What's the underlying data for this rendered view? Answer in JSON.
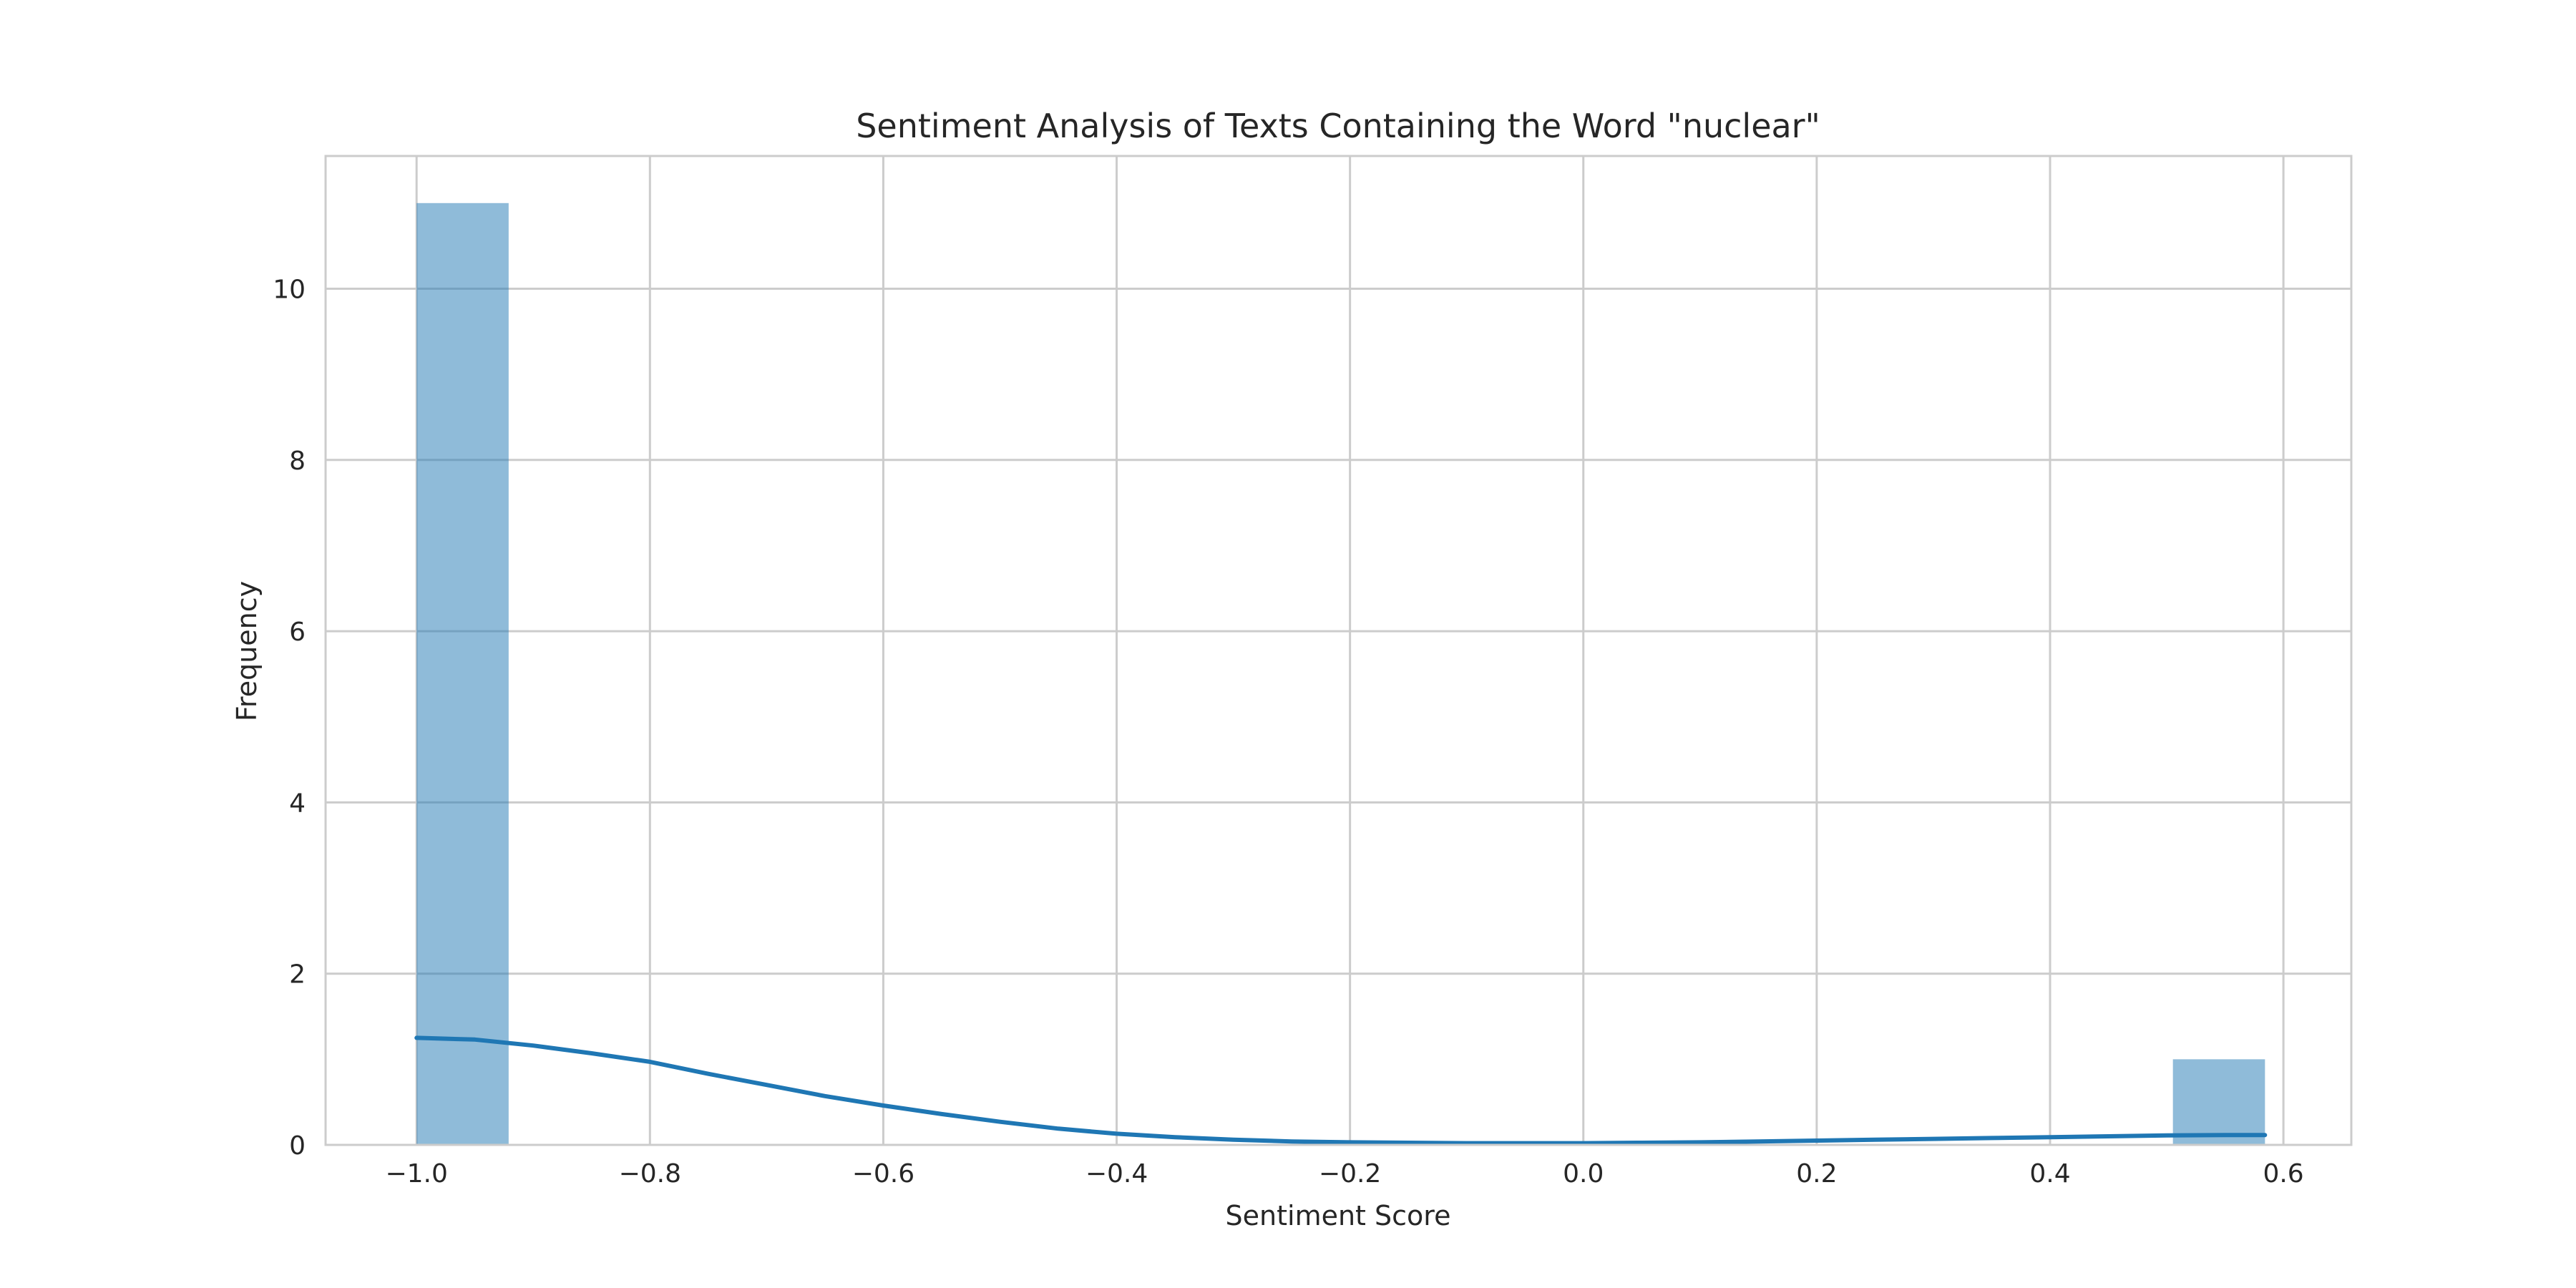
{
  "chart_data": {
    "type": "bar",
    "title": "Sentiment Analysis of Texts Containing the Word \"nuclear\"",
    "xlabel": "Sentiment Score",
    "ylabel": "Frequency",
    "xlim": [
      -1.078,
      0.6582
    ],
    "ylim": [
      0,
      11.55
    ],
    "x_ticks": [
      -1.0,
      -0.8,
      -0.6,
      -0.4,
      -0.2,
      0.0,
      0.2,
      0.4,
      0.6
    ],
    "x_tick_labels": [
      "−1.0",
      "−0.8",
      "−0.6",
      "−0.4",
      "−0.2",
      "0.0",
      "0.2",
      "0.4",
      "0.6"
    ],
    "y_ticks": [
      0,
      2,
      4,
      6,
      8,
      10
    ],
    "y_tick_labels": [
      "0",
      "2",
      "4",
      "6",
      "8",
      "10"
    ],
    "grid": true,
    "bins": [
      {
        "x0": -1.0,
        "x1": -0.9211,
        "count": 11
      },
      {
        "x0": 0.5053,
        "x1": 0.5842,
        "count": 1
      }
    ],
    "kde": {
      "x": [
        -1.0,
        -0.95,
        -0.9,
        -0.85,
        -0.8,
        -0.75,
        -0.7,
        -0.65,
        -0.6,
        -0.55,
        -0.5,
        -0.45,
        -0.4,
        -0.35,
        -0.3,
        -0.25,
        -0.2,
        -0.15,
        -0.1,
        -0.05,
        0.0,
        0.05,
        0.1,
        0.15,
        0.2,
        0.25,
        0.3,
        0.35,
        0.4,
        0.45,
        0.5,
        0.55,
        0.5842
      ],
      "y": [
        1.25,
        1.23,
        1.16,
        1.07,
        0.97,
        0.83,
        0.7,
        0.57,
        0.46,
        0.36,
        0.27,
        0.19,
        0.13,
        0.09,
        0.06,
        0.04,
        0.03,
        0.025,
        0.02,
        0.02,
        0.02,
        0.025,
        0.03,
        0.04,
        0.05,
        0.06,
        0.07,
        0.08,
        0.09,
        0.1,
        0.11,
        0.115,
        0.115
      ]
    },
    "colors": {
      "bar_fill": "#1f77b4",
      "bar_opacity": 0.5,
      "kde_line": "#1f77b4",
      "grid": "#cccccc",
      "text": "#262626"
    }
  }
}
